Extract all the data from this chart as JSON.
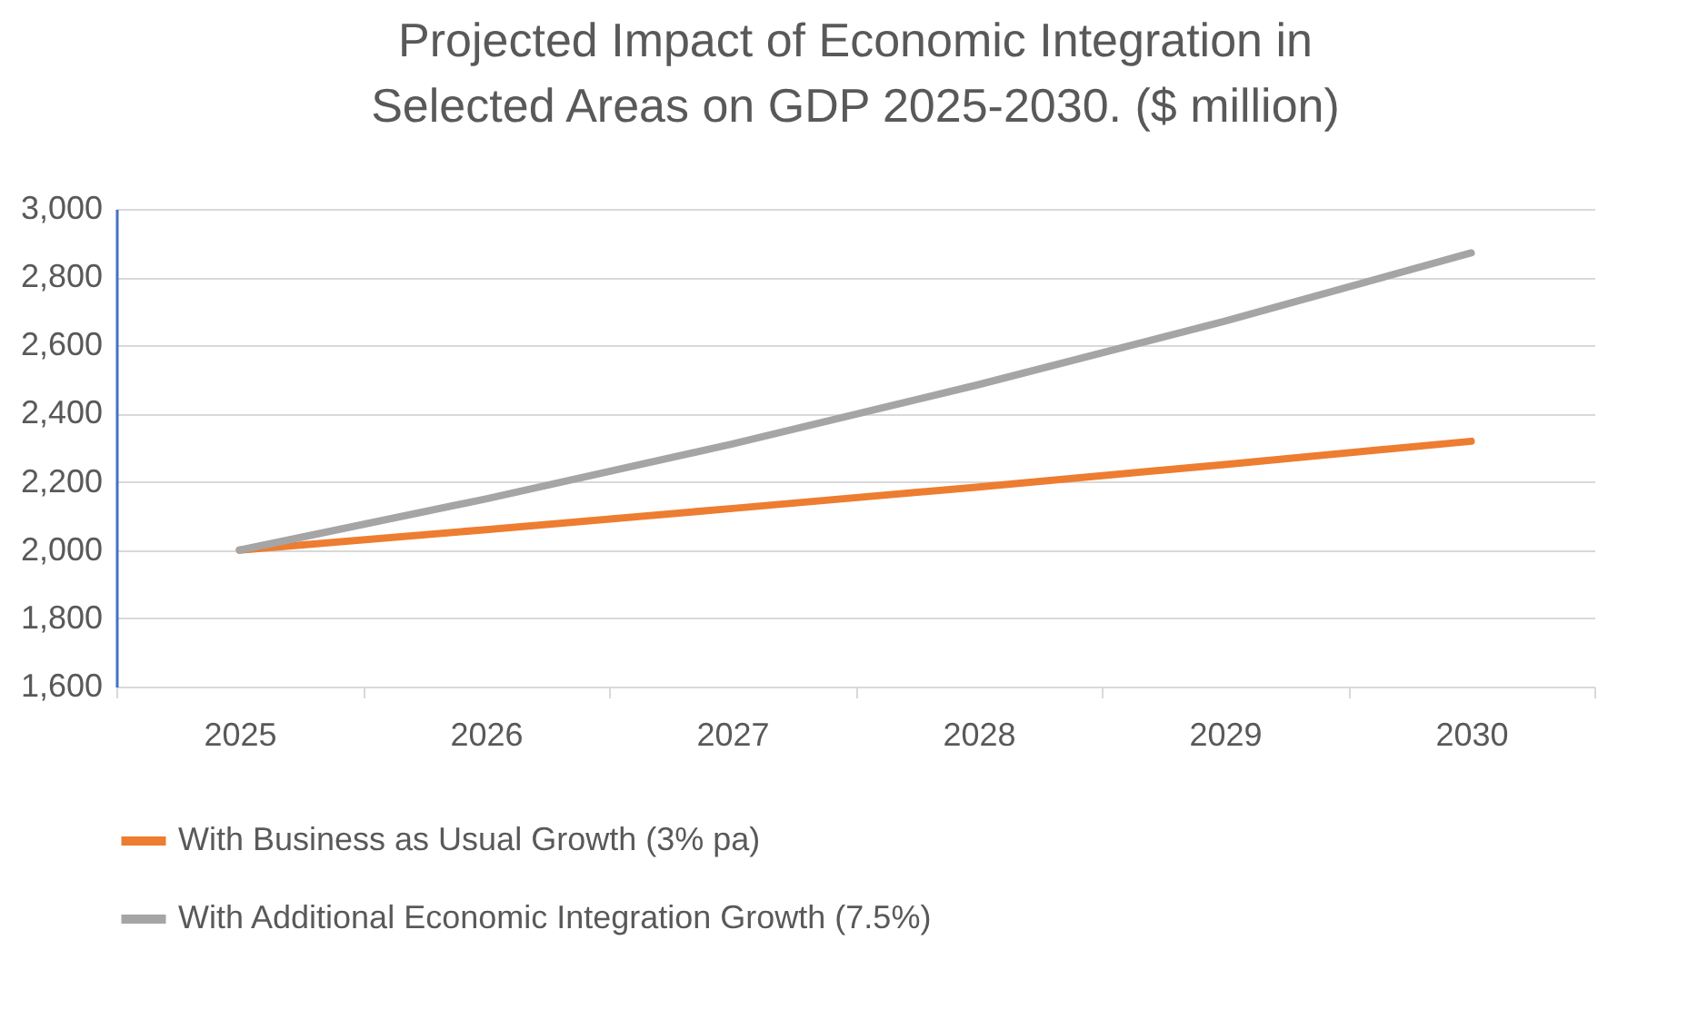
{
  "chart_data": {
    "type": "line",
    "title": "Projected Impact of Economic Integration in Selected Areas on GDP 2025-2030.  ($ million)",
    "categories": [
      "2025",
      "2026",
      "2027",
      "2028",
      "2029",
      "2030"
    ],
    "series": [
      {
        "name": "With Business as Usual Growth (3% pa)",
        "color": "#ed7d31",
        "values": [
          2000,
          2060,
          2122,
          2185,
          2251,
          2319
        ]
      },
      {
        "name": "With Additional Economic Integration Growth (7.5%)",
        "color": "#a5a5a5",
        "values": [
          2000,
          2150,
          2311,
          2485,
          2671,
          2871
        ]
      }
    ],
    "ylim": [
      1600,
      3000
    ],
    "yticks": [
      {
        "value": 1600,
        "label": "1,600"
      },
      {
        "value": 1800,
        "label": "1,800"
      },
      {
        "value": 2000,
        "label": "2,000"
      },
      {
        "value": 2200,
        "label": "2,200"
      },
      {
        "value": 2400,
        "label": "2,400"
      },
      {
        "value": 2600,
        "label": "2,600"
      },
      {
        "value": 2800,
        "label": "2,800"
      },
      {
        "value": 3000,
        "label": "3,000"
      }
    ],
    "grid": "y",
    "legend": "bottom",
    "line_style": "solid",
    "marker": "none"
  }
}
